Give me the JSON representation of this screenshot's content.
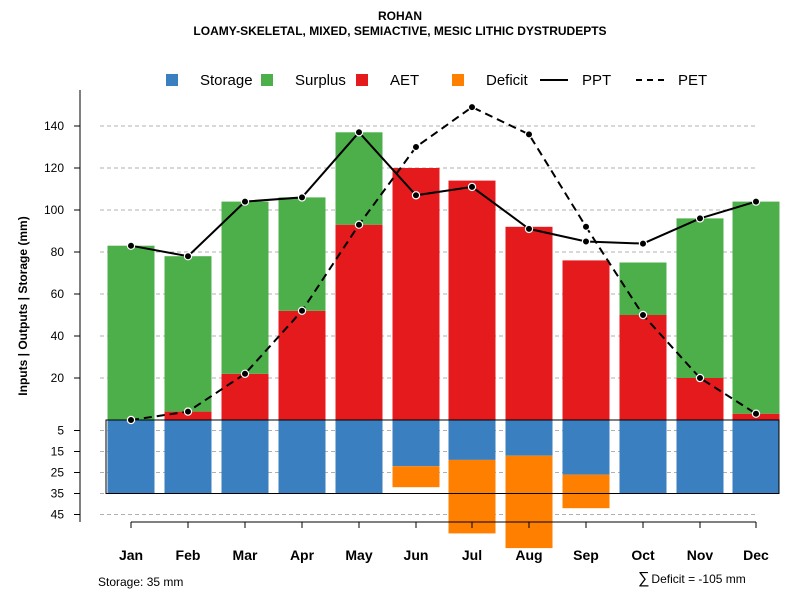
{
  "title": "ROHAN",
  "subtitle": "LOAMY-SKELETAL, MIXED, SEMIACTIVE, MESIC LITHIC DYSTRUDEPTS",
  "ylabel": "Inputs | Outputs | Storage    (mm)",
  "legend": {
    "storage": "Storage",
    "surplus": "Surplus",
    "aet": "AET",
    "deficit": "Deficit",
    "ppt": "PPT",
    "pet": "PET"
  },
  "colors": {
    "storage": "#3A7FBF",
    "surplus": "#4DAF4A",
    "aet": "#E41A1C",
    "deficit": "#FF7F00"
  },
  "footer": {
    "storage_text": "Storage: 35 mm",
    "sigma": "∑",
    "deficit_text": "Deficit = -105 mm"
  },
  "chart_data": {
    "type": "bar",
    "categories": [
      "Jan",
      "Feb",
      "Mar",
      "Apr",
      "May",
      "Jun",
      "Jul",
      "Aug",
      "Sep",
      "Oct",
      "Nov",
      "Dec"
    ],
    "upper_ticks": [
      20,
      40,
      60,
      80,
      100,
      120,
      140
    ],
    "lower_ticks": [
      5,
      15,
      25,
      35,
      45
    ],
    "ylim_upper": [
      0,
      150
    ],
    "ylim_lower": [
      0,
      50
    ],
    "series": [
      {
        "name": "AET",
        "values": [
          0,
          4,
          22,
          52,
          93,
          120,
          114,
          92,
          76,
          50,
          20,
          3
        ]
      },
      {
        "name": "Surplus",
        "values": [
          83,
          74,
          82,
          54,
          44,
          0,
          0,
          0,
          0,
          25,
          76,
          101
        ]
      },
      {
        "name": "Storage",
        "values": [
          35,
          35,
          35,
          35,
          35,
          22,
          19,
          17,
          26,
          35,
          35,
          35
        ]
      },
      {
        "name": "Deficit",
        "values": [
          0,
          0,
          0,
          0,
          0,
          10,
          35,
          44,
          16,
          0,
          0,
          0
        ]
      },
      {
        "name": "PPT",
        "values": [
          83,
          78,
          104,
          106,
          137,
          107,
          111,
          91,
          85,
          84,
          96,
          104
        ]
      },
      {
        "name": "PET",
        "values": [
          0,
          4,
          22,
          52,
          93,
          130,
          149,
          136,
          92,
          50,
          20,
          3
        ]
      }
    ]
  }
}
